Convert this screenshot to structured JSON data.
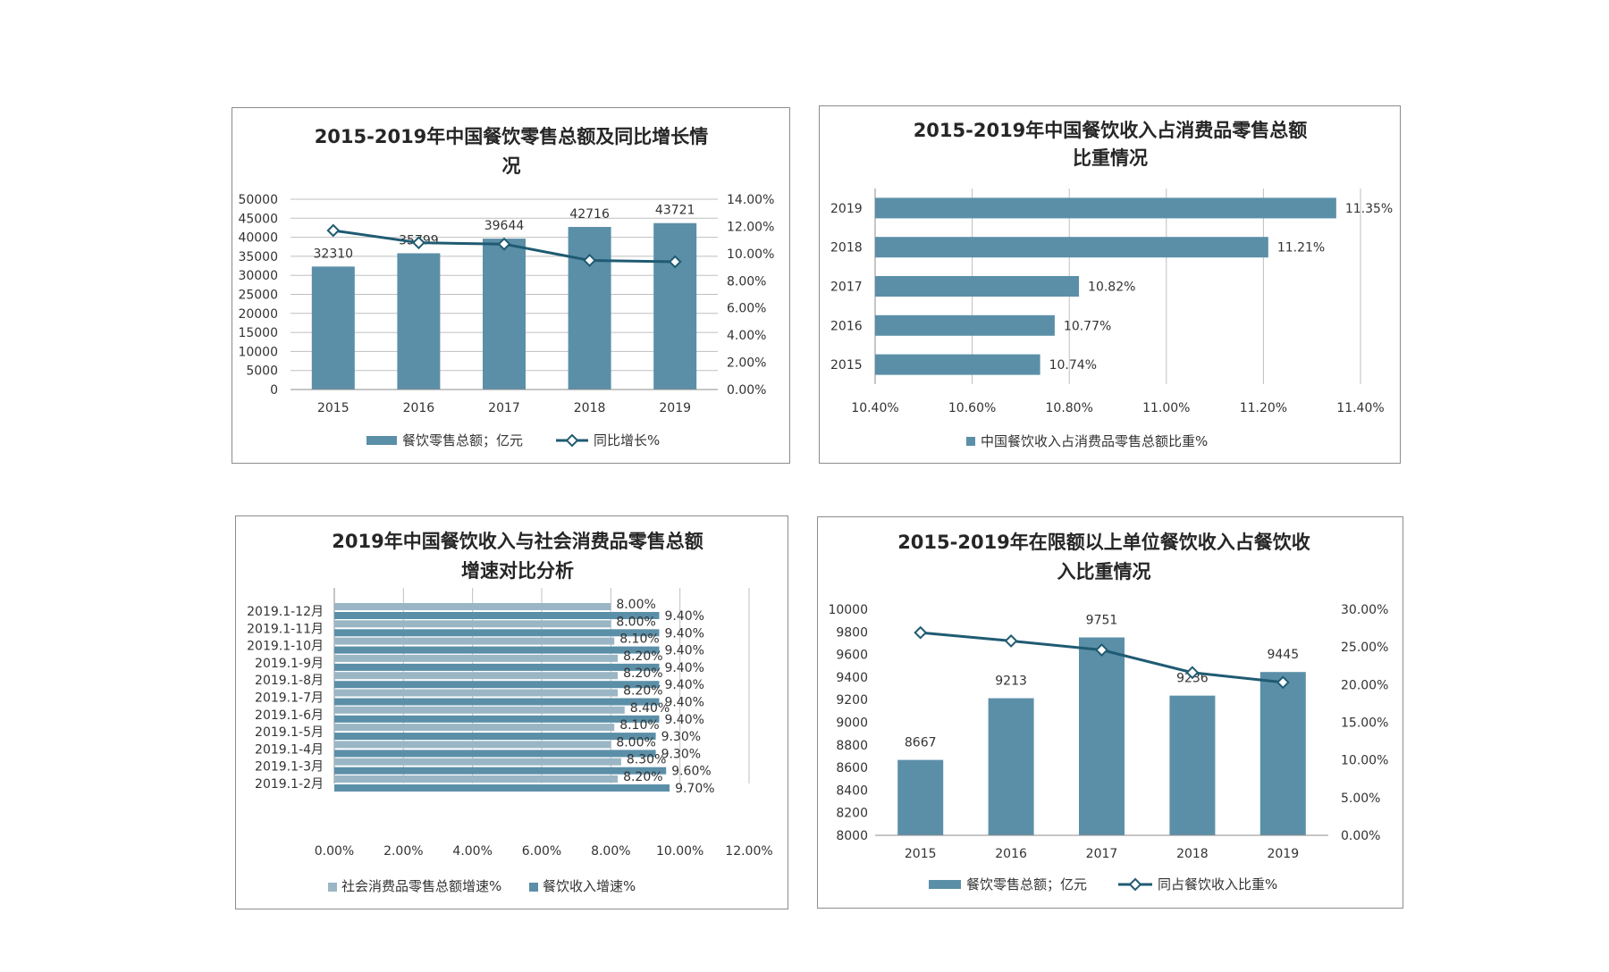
{
  "colors": {
    "bar": "#5b8fa8",
    "bar_light": "#9ab6c5",
    "line": "#1f5b72",
    "grid": "#bfbfbf",
    "axis": "#8c8c8c"
  },
  "chart_data": [
    {
      "id": "chart1",
      "type": "bar+line",
      "title_lines": [
        "2015-2019年中国餐饮零售总额及同比增长情",
        "况"
      ],
      "categories": [
        "2015",
        "2016",
        "2017",
        "2018",
        "2019"
      ],
      "y_ticks": [
        "50000",
        "45000",
        "40000",
        "35000",
        "30000",
        "25000",
        "20000",
        "15000",
        "10000",
        "5000",
        "0"
      ],
      "y2_ticks": [
        "14.00%",
        "12.00%",
        "10.00%",
        "8.00%",
        "6.00%",
        "4.00%",
        "2.00%",
        "0.00%"
      ],
      "ylim": [
        0,
        50000
      ],
      "y2lim": [
        0,
        14
      ],
      "series": [
        {
          "name": "餐饮零售总额；亿元",
          "type": "bar",
          "values": [
            32310,
            35799,
            39644,
            42716,
            43721
          ],
          "labels": [
            "32310",
            "35799",
            "39644",
            "42716",
            "43721"
          ]
        },
        {
          "name": "同比增长%",
          "type": "line",
          "values": [
            11.7,
            10.8,
            10.7,
            9.5,
            9.4
          ]
        }
      ],
      "legend": "bottom",
      "grid": true
    },
    {
      "id": "chart2",
      "type": "bar",
      "orientation": "horizontal",
      "title_lines": [
        "2015-2019年中国餐饮收入占消费品零售总额",
        "比重情况"
      ],
      "categories": [
        "2019",
        "2018",
        "2017",
        "2016",
        "2015"
      ],
      "values": [
        11.35,
        11.21,
        10.82,
        10.77,
        10.74
      ],
      "labels": [
        "11.35%",
        "11.21%",
        "10.82%",
        "10.77%",
        "10.74%"
      ],
      "x_ticks": [
        "10.40%",
        "10.60%",
        "10.80%",
        "11.00%",
        "11.20%",
        "11.40%"
      ],
      "xlim": [
        10.4,
        11.4
      ],
      "series_name": "中国餐饮收入占消费品零售总额比重%",
      "legend": "bottom",
      "grid": true
    },
    {
      "id": "chart3",
      "type": "bar",
      "orientation": "horizontal",
      "title_lines": [
        "2019年中国餐饮收入与社会消费品零售总额",
        "增速对比分析"
      ],
      "categories": [
        "2019.1-12月",
        "2019.1-11月",
        "2019.1-10月",
        "2019.1-9月",
        "2019.1-8月",
        "2019.1-7月",
        "2019.1-6月",
        "2019.1-5月",
        "2019.1-4月",
        "2019.1-3月",
        "2019.1-2月"
      ],
      "x_ticks": [
        "0.00%",
        "2.00%",
        "4.00%",
        "6.00%",
        "8.00%",
        "10.00%",
        "12.00%"
      ],
      "xlim": [
        0,
        12
      ],
      "series": [
        {
          "name": "社会消费品零售总额增速%",
          "values": [
            8.0,
            8.0,
            8.1,
            8.2,
            8.2,
            8.2,
            8.4,
            8.1,
            8.0,
            8.3,
            8.2
          ],
          "labels": [
            "8.00%",
            "8.00%",
            "8.10%",
            "8.20%",
            "8.20%",
            "8.20%",
            "8.40%",
            "8.10%",
            "8.00%",
            "8.30%",
            "8.20%"
          ]
        },
        {
          "name": "餐饮收入增速%",
          "values": [
            9.4,
            9.4,
            9.4,
            9.4,
            9.4,
            9.4,
            9.4,
            9.3,
            9.3,
            9.6,
            9.7
          ],
          "labels": [
            "9.40%",
            "9.40%",
            "9.40%",
            "9.40%",
            "9.40%",
            "9.40%",
            "9.40%",
            "9.30%",
            "9.30%",
            "9.60%",
            "9.70%"
          ]
        }
      ],
      "legend": "bottom",
      "grid": true
    },
    {
      "id": "chart4",
      "type": "bar+line",
      "title_lines": [
        "2015-2019年在限额以上单位餐饮收入占餐饮收",
        "入比重情况"
      ],
      "categories": [
        "2015",
        "2016",
        "2017",
        "2018",
        "2019"
      ],
      "y_ticks": [
        "10000",
        "9800",
        "9600",
        "9400",
        "9200",
        "9000",
        "8800",
        "8600",
        "8400",
        "8200",
        "8000"
      ],
      "y2_ticks": [
        "30.00%",
        "25.00%",
        "20.00%",
        "15.00%",
        "10.00%",
        "5.00%",
        "0.00%"
      ],
      "ylim": [
        8000,
        10000
      ],
      "y2lim": [
        0,
        30
      ],
      "series": [
        {
          "name": "餐饮零售总额；亿元",
          "type": "bar",
          "values": [
            8667,
            9213,
            9751,
            9236,
            9445
          ],
          "labels": [
            "8667",
            "9213",
            "9751",
            "9236",
            "9445"
          ]
        },
        {
          "name": "同占餐饮收入比重%",
          "type": "line",
          "values": [
            26.9,
            25.8,
            24.6,
            21.6,
            20.3
          ]
        }
      ],
      "legend": "bottom",
      "grid": false
    }
  ]
}
